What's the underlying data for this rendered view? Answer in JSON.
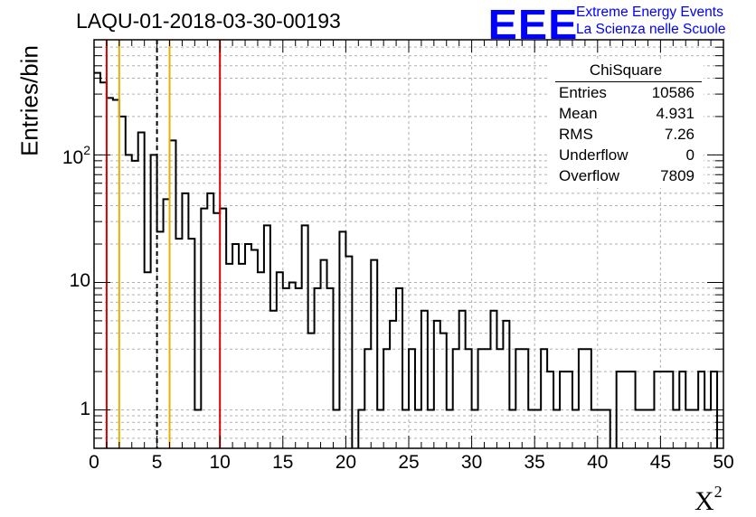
{
  "title": "LAQU-01-2018-03-30-00193",
  "logo": {
    "mark": "EEE",
    "line1": "Extreme Energy Events",
    "line2": "La Scienza nelle Scuole",
    "color": "#0000ff"
  },
  "stats": {
    "name": "ChiSquare",
    "rows": [
      {
        "key": "Entries",
        "value": "10586"
      },
      {
        "key": "Mean",
        "value": "4.931"
      },
      {
        "key": "RMS",
        "value": "7.26"
      },
      {
        "key": "Underflow",
        "value": "0"
      },
      {
        "key": "Overflow",
        "value": "7809"
      }
    ]
  },
  "chart_data": {
    "type": "histogram",
    "title": "LAQU-01-2018-03-30-00193",
    "xlabel": "X",
    "xlabel_superscript": "2",
    "ylabel": "Entries/bin",
    "xlim": [
      0,
      50
    ],
    "ylim": [
      0.5,
      800
    ],
    "yscale": "log",
    "grid": true,
    "bin_width": 0.5,
    "x_ticks": [
      "0",
      "5",
      "10",
      "15",
      "20",
      "25",
      "30",
      "35",
      "40",
      "45",
      "50"
    ],
    "y_ticks": [
      {
        "label": "1",
        "sup": "",
        "value": 1
      },
      {
        "label": "10",
        "sup": "",
        "value": 10
      },
      {
        "label": "10",
        "sup": "2",
        "value": 100
      }
    ],
    "values": [
      440,
      370,
      280,
      270,
      200,
      100,
      90,
      150,
      12,
      100,
      25,
      45,
      130,
      22,
      50,
      22,
      1,
      38,
      50,
      35,
      38,
      14,
      20,
      14,
      20,
      18,
      12,
      28,
      6,
      12,
      9,
      10,
      9,
      28,
      4,
      9,
      15,
      9,
      1,
      25,
      16,
      0,
      1,
      3,
      15,
      1,
      3,
      5,
      9,
      1,
      3,
      1,
      6,
      1,
      5,
      4,
      1,
      3,
      6,
      3,
      1,
      3,
      3,
      6,
      3,
      5,
      1,
      3,
      3,
      1,
      1,
      3,
      2,
      1,
      2,
      2,
      1,
      3,
      3,
      1,
      1,
      1,
      0,
      2,
      2,
      2,
      1,
      1,
      1,
      2,
      2,
      2,
      1,
      2,
      1,
      1,
      2,
      1,
      2,
      0
    ],
    "vertical_lines": [
      {
        "x": 1,
        "color": "#dd0000",
        "style": "solid"
      },
      {
        "x": 2,
        "color": "#e8b000",
        "style": "solid"
      },
      {
        "x": 5,
        "color": "#000000",
        "style": "dashed"
      },
      {
        "x": 6,
        "color": "#e8b000",
        "style": "solid"
      },
      {
        "x": 10,
        "color": "#dd0000",
        "style": "solid"
      }
    ]
  }
}
